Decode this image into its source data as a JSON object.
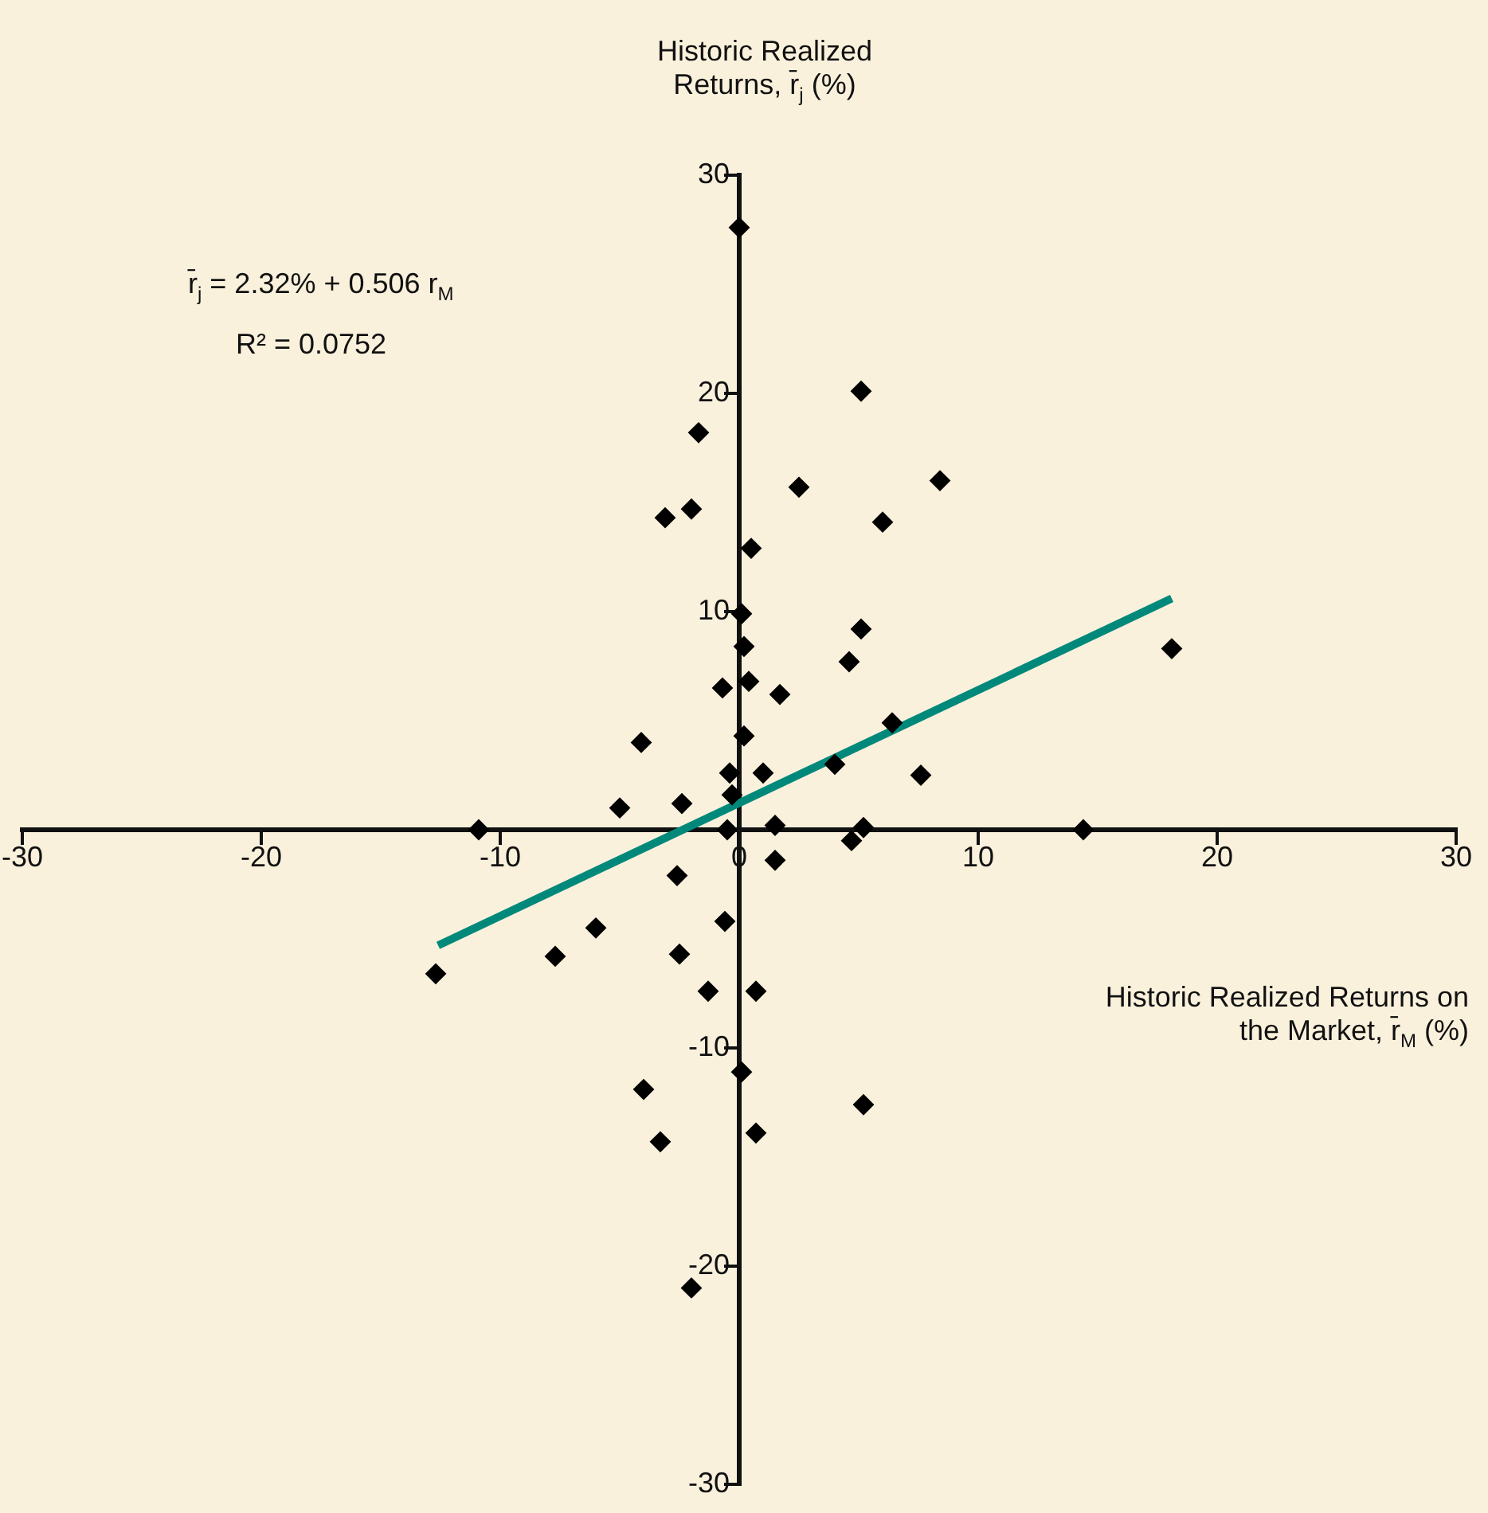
{
  "chart_data": {
    "type": "scatter",
    "ylabel": "Historic Realized Returns, r̄$_{j}$ (%)",
    "xlabel": "Historic Realized Returns on the Market, r̄$_{M}$ (%)",
    "annotations": [
      "r̄$_{j}$ = 2.32% + 0.506 r$_{M}$",
      "R² = 0.0752"
    ],
    "xlim": [
      -30,
      30
    ],
    "ylim": [
      -30,
      30
    ],
    "xticks": [
      -30,
      -20,
      -10,
      0,
      10,
      20,
      30
    ],
    "yticks": [
      -30,
      -20,
      -10,
      {
        "value": 0,
        "label": null
      },
      10,
      20,
      30
    ],
    "grid": false,
    "legend": false,
    "marker": "diamond",
    "series": [
      {
        "type": "scatter",
        "color": "#000000",
        "x": [
          0.0,
          5.1,
          -1.7,
          2.5,
          8.4,
          -3.1,
          -2.0,
          6.0,
          0.5,
          0.1,
          5.1,
          0.2,
          4.6,
          -0.7,
          0.4,
          1.7,
          6.4,
          -4.1,
          0.2,
          4.0,
          7.6,
          -0.4,
          1.0,
          -0.3,
          -5.0,
          -2.4,
          -10.9,
          -0.5,
          1.5,
          5.2,
          4.7,
          1.5,
          -2.6,
          -6.0,
          -0.6,
          -7.7,
          -2.5,
          -12.7,
          -1.3,
          0.7,
          0.1,
          -4.0,
          5.2,
          -3.3,
          0.7,
          -2.0,
          18.1,
          14.4
        ],
        "values": [
          27.6,
          20.1,
          18.2,
          15.7,
          16.0,
          14.3,
          14.7,
          14.1,
          12.9,
          9.9,
          9.2,
          8.4,
          7.7,
          6.5,
          6.8,
          6.2,
          4.9,
          4.0,
          4.3,
          3.0,
          2.5,
          2.6,
          2.6,
          1.6,
          1.0,
          1.2,
          0.0,
          0.0,
          0.2,
          0.1,
          -0.5,
          -1.4,
          -2.1,
          -4.5,
          -4.2,
          -5.8,
          -5.7,
          -6.6,
          -7.4,
          -7.4,
          -11.1,
          -11.9,
          -12.6,
          -14.3,
          -13.9,
          -21.0,
          8.3,
          0.0
        ]
      },
      {
        "type": "line",
        "color": "#00897b",
        "marker": "none",
        "x": [
          -12.6,
          18.1
        ],
        "values": [
          -5.3,
          10.6
        ]
      }
    ]
  }
}
